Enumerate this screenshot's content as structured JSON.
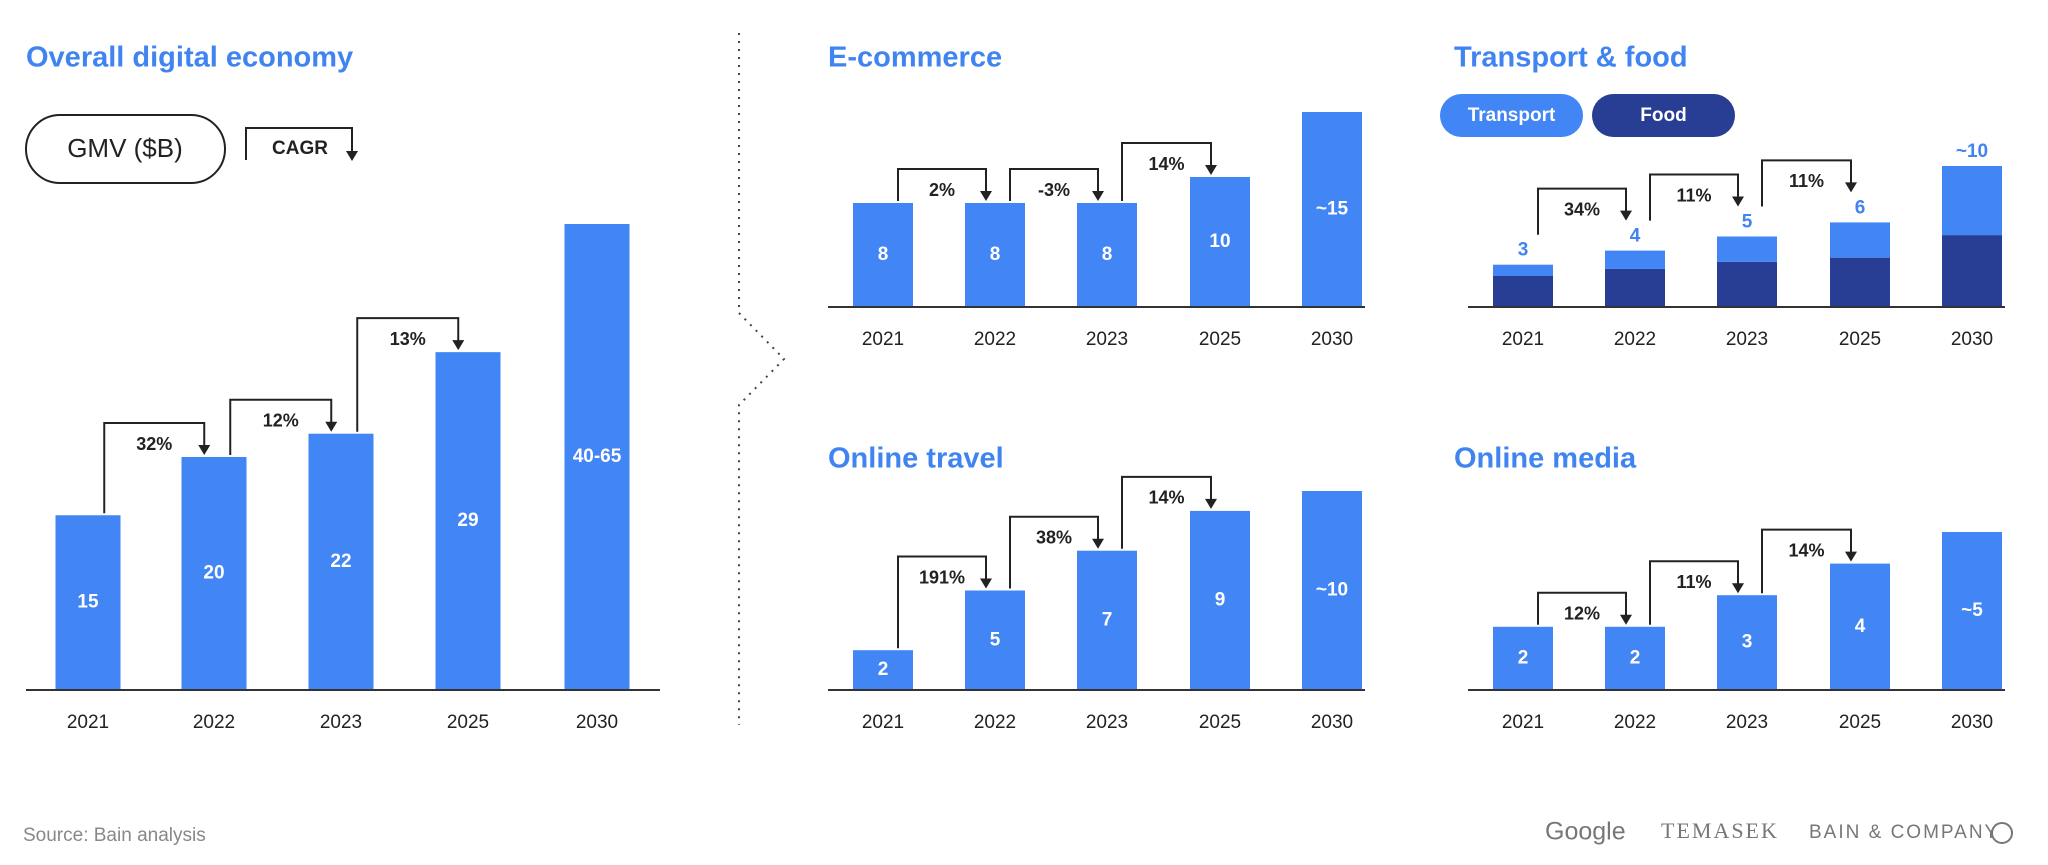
{
  "legend": {
    "gmv": "GMV ($B)",
    "cagr": "CAGR"
  },
  "source": "Source: Bain analysis",
  "logos": [
    "Google",
    "TEMASEK",
    "BAIN & COMPANY"
  ],
  "chart_data": [
    {
      "type": "bar",
      "title": "Overall digital economy",
      "categories": [
        "2021",
        "2022",
        "2023",
        "2025",
        "2030"
      ],
      "values": [
        15,
        20,
        22,
        29,
        40
      ],
      "value_labels": [
        null,
        null,
        null,
        null,
        "40-65"
      ],
      "cagr": [
        32,
        12,
        13
      ],
      "cagr_labels": [
        "32%",
        "12%",
        "13%"
      ],
      "color": "#4285f4"
    },
    {
      "type": "bar",
      "title": "E-commerce",
      "categories": [
        "2021",
        "2022",
        "2023",
        "2025",
        "2030"
      ],
      "values": [
        8,
        8,
        8,
        10,
        15
      ],
      "value_labels": [
        null,
        null,
        null,
        null,
        "~15"
      ],
      "cagr": [
        2,
        -3,
        14
      ],
      "cagr_labels": [
        "2%",
        "-3%",
        "14%"
      ],
      "color": "#4285f4"
    },
    {
      "type": "stacked_bar",
      "title": "Transport & food",
      "categories": [
        "2021",
        "2022",
        "2023",
        "2025",
        "2030"
      ],
      "series": [
        {
          "name": "Transport",
          "color": "#4285f4",
          "values": [
            0.8,
            1.3,
            1.8,
            2.5,
            4.9
          ]
        },
        {
          "name": "Food",
          "color": "#283e94",
          "values": [
            2.2,
            2.7,
            3.2,
            3.5,
            5.1
          ]
        }
      ],
      "totals": [
        3,
        4,
        5,
        6,
        10
      ],
      "total_labels": [
        null,
        null,
        null,
        null,
        "~10"
      ],
      "cagr": [
        34,
        11,
        11
      ],
      "cagr_labels": [
        "34%",
        "11%",
        "11%"
      ]
    },
    {
      "type": "bar",
      "title": "Online travel",
      "categories": [
        "2021",
        "2022",
        "2023",
        "2025",
        "2030"
      ],
      "values": [
        2,
        5,
        7,
        9,
        10
      ],
      "value_labels": [
        null,
        null,
        null,
        null,
        "~10"
      ],
      "cagr": [
        191,
        38,
        14
      ],
      "cagr_labels": [
        "191%",
        "38%",
        "14%"
      ],
      "color": "#4285f4"
    },
    {
      "type": "bar",
      "title": "Online media",
      "categories": [
        "2021",
        "2022",
        "2023",
        "2025",
        "2030"
      ],
      "values": [
        2,
        2,
        3,
        4,
        5
      ],
      "value_labels": [
        null,
        null,
        null,
        null,
        "~5"
      ],
      "cagr": [
        12,
        11,
        14
      ],
      "cagr_labels": [
        "12%",
        "11%",
        "14%"
      ],
      "color": "#4285f4"
    }
  ]
}
